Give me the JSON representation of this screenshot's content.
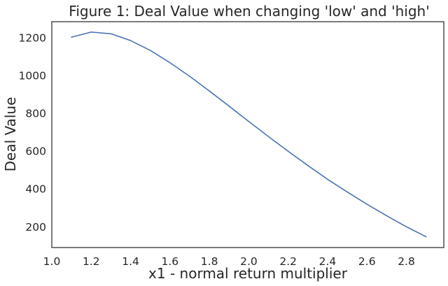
{
  "chart_data": {
    "type": "line",
    "title": "Figure 1: Deal Value when changing 'low' and 'high'",
    "xlabel": "x1 - normal return multiplier",
    "ylabel": "Deal Value",
    "xlim": [
      1.0,
      2.99
    ],
    "ylim": [
      90,
      1285
    ],
    "x_ticks": [
      1.0,
      1.2,
      1.4,
      1.6,
      1.8,
      2.0,
      2.2,
      2.4,
      2.6,
      2.8
    ],
    "x_tick_labels": [
      "1.0",
      "1.2",
      "1.4",
      "1.6",
      "1.8",
      "2.0",
      "2.2",
      "2.4",
      "2.6",
      "2.8"
    ],
    "y_ticks": [
      200,
      400,
      600,
      800,
      1000,
      1200
    ],
    "y_tick_labels": [
      "200",
      "400",
      "600",
      "800",
      "1000",
      "1200"
    ],
    "grid": false,
    "series": [
      {
        "color": "#4c72b0",
        "x": [
          1.1,
          1.2,
          1.3,
          1.4,
          1.5,
          1.6,
          1.7,
          1.8,
          1.9,
          2.0,
          2.1,
          2.2,
          2.3,
          2.4,
          2.5,
          2.6,
          2.7,
          2.8,
          2.9
        ],
        "y": [
          1203,
          1230,
          1221,
          1185,
          1133,
          1068,
          996,
          918,
          838,
          757,
          677,
          599,
          524,
          451,
          384,
          319,
          258,
          200,
          147
        ]
      }
    ]
  }
}
